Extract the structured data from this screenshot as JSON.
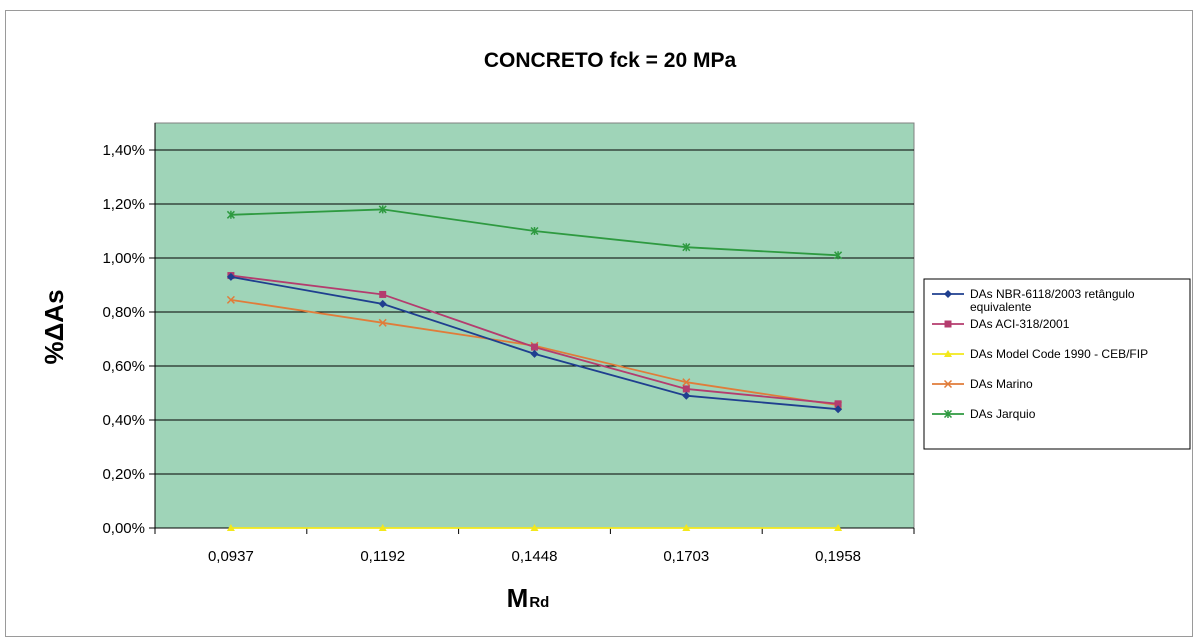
{
  "chart_data": {
    "type": "line",
    "title": "CONCRETO fck = 20 MPa",
    "xlabel_main": "M",
    "xlabel_sub": "Rd",
    "ylabel": "%ΔAs",
    "categories": [
      "0,0937",
      "0,1192",
      "0,1448",
      "0,1703",
      "0,1958"
    ],
    "yticks": [
      "0,00%",
      "0,20%",
      "0,40%",
      "0,60%",
      "0,80%",
      "1,00%",
      "1,20%",
      "1,40%"
    ],
    "ylim": [
      0,
      1.5
    ],
    "grid": true,
    "legend_position": "right",
    "series": [
      {
        "name": "DAs NBR-6118/2003 retângulo equivalente",
        "values": [
          0.93,
          0.83,
          0.645,
          0.49,
          0.44
        ],
        "color": "#1f3f8f",
        "marker": "diamond"
      },
      {
        "name": "DAs ACI-318/2001",
        "values": [
          0.935,
          0.865,
          0.67,
          0.515,
          0.46
        ],
        "color": "#b43c6e",
        "marker": "square"
      },
      {
        "name": "DAs Model Code 1990 - CEB/FIP",
        "values": [
          0.0,
          0.0,
          0.0,
          0.0,
          0.0
        ],
        "color": "#f3e81c",
        "marker": "triangle"
      },
      {
        "name": "DAs Marino",
        "values": [
          0.845,
          0.76,
          0.675,
          0.54,
          0.455
        ],
        "color": "#e07c3a",
        "marker": "x"
      },
      {
        "name": "DAs Jarquio",
        "values": [
          1.16,
          1.18,
          1.1,
          1.04,
          1.01
        ],
        "color": "#2e9a40",
        "marker": "star"
      }
    ],
    "colors": {
      "plot_background": "#9fd4b8",
      "gridline": "#000000"
    }
  }
}
